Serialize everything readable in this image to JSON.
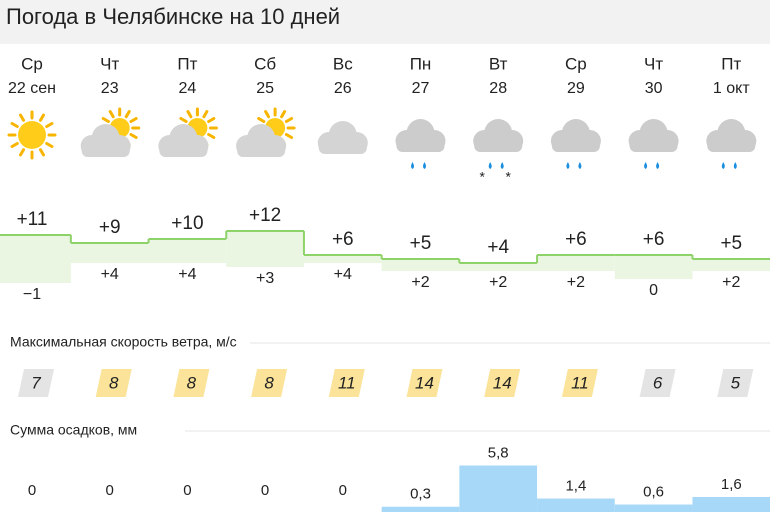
{
  "title": "Погода в Челябинске на 10 дней",
  "wind_header": "Максимальная скорость ветра, м/с",
  "precip_header": "Сумма осадков, мм",
  "days": [
    {
      "weekday": "Ср",
      "date": "22 сен",
      "day_color": "#2b80d2",
      "icon": "sun",
      "temp_max": {
        "value": 11,
        "label": "+11"
      },
      "temp_min": {
        "value": -1,
        "label": "−1"
      },
      "wind": 7,
      "wind_color": "#e4e4e4",
      "precip": 0
    },
    {
      "weekday": "Чт",
      "date": "23",
      "day_color": "#2b80d2",
      "icon": "partly",
      "temp_max": {
        "value": 9,
        "label": "+9"
      },
      "temp_min": {
        "value": 4,
        "label": "+4"
      },
      "wind": 8,
      "wind_color": "#fbe39a",
      "precip": 0
    },
    {
      "weekday": "Пт",
      "date": "24",
      "day_color": "#2b80d2",
      "icon": "partly",
      "temp_max": {
        "value": 10,
        "label": "+10"
      },
      "temp_min": {
        "value": 4,
        "label": "+4"
      },
      "wind": 8,
      "wind_color": "#fbe39a",
      "precip": 0
    },
    {
      "weekday": "Сб",
      "date": "25",
      "day_color": "#c4302b",
      "icon": "partly",
      "temp_max": {
        "value": 12,
        "label": "+12"
      },
      "temp_min": {
        "value": 3,
        "label": "+3"
      },
      "wind": 8,
      "wind_color": "#fbe39a",
      "precip": 0
    },
    {
      "weekday": "Вс",
      "date": "26",
      "day_color": "#c4302b",
      "icon": "cloud",
      "temp_max": {
        "value": 6,
        "label": "+6"
      },
      "temp_min": {
        "value": 4,
        "label": "+4"
      },
      "wind": 11,
      "wind_color": "#fbe39a",
      "precip": 0
    },
    {
      "weekday": "Пн",
      "date": "27",
      "day_color": "#2b80d2",
      "icon": "rain",
      "temp_max": {
        "value": 5,
        "label": "+5"
      },
      "temp_min": {
        "value": 2,
        "label": "+2"
      },
      "wind": 14,
      "wind_color": "#fbe39a",
      "precip": {
        "value": 0.3,
        "label": "0,3"
      }
    },
    {
      "weekday": "Вт",
      "date": "28",
      "day_color": "#2b80d2",
      "icon": "sleet",
      "temp_max": {
        "value": 4,
        "label": "+4"
      },
      "temp_min": {
        "value": 2,
        "label": "+2"
      },
      "wind": 14,
      "wind_color": "#fbe39a",
      "precip": {
        "value": 5.8,
        "label": "5,8"
      }
    },
    {
      "weekday": "Ср",
      "date": "29",
      "day_color": "#2b80d2",
      "icon": "rain",
      "temp_max": {
        "value": 6,
        "label": "+6"
      },
      "temp_min": {
        "value": 2,
        "label": "+2"
      },
      "wind": 11,
      "wind_color": "#fbe39a",
      "precip": {
        "value": 1.4,
        "label": "1,4"
      }
    },
    {
      "weekday": "Чт",
      "date": "30",
      "day_color": "#2b80d2",
      "icon": "rain",
      "temp_max": {
        "value": 6,
        "label": "+6"
      },
      "temp_min": 0,
      "wind": 6,
      "wind_color": "#e4e4e4",
      "precip": {
        "value": 0.6,
        "label": "0,6"
      }
    },
    {
      "weekday": "Пт",
      "date": "1 окт",
      "day_color": "#2b80d2",
      "icon": "rain",
      "temp_max": {
        "value": 5,
        "label": "+5"
      },
      "temp_min": {
        "value": 2,
        "label": "+2"
      },
      "wind": 5,
      "wind_color": "#e4e4e4",
      "precip": {
        "value": 1.6,
        "label": "1,6"
      }
    }
  ]
}
